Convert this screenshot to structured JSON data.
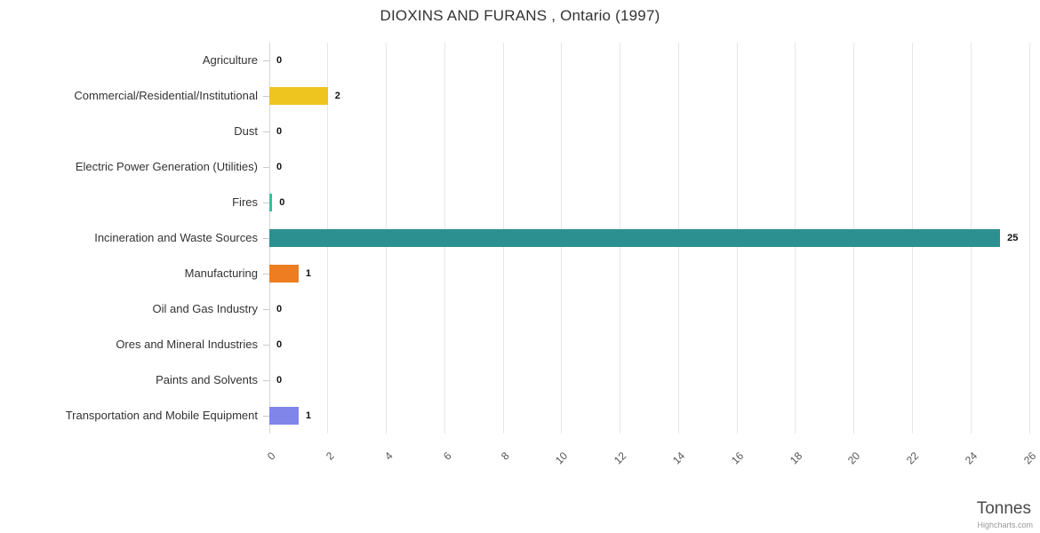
{
  "chart_data": {
    "type": "bar",
    "orientation": "horizontal",
    "title": "DIOXINS AND FURANS , Ontario (1997)",
    "categories": [
      "Agriculture",
      "Commercial/Residential/Institutional",
      "Dust",
      "Electric Power Generation (Utilities)",
      "Fires",
      "Incineration and Waste Sources",
      "Manufacturing",
      "Oil and Gas Industry",
      "Ores and Mineral Industries",
      "Paints and Solvents",
      "Transportation and Mobile Equipment"
    ],
    "values": [
      0,
      2,
      0,
      0,
      0.1,
      25,
      1,
      0,
      0,
      0,
      1
    ],
    "data_labels": [
      "0",
      "2",
      "0",
      "0",
      "0",
      "25",
      "1",
      "0",
      "0",
      "0",
      "1"
    ],
    "bar_colors": [
      null,
      "#edc51e",
      null,
      null,
      "#38bf9a",
      "#2b908f",
      "#ed7d20",
      null,
      null,
      null,
      "#8085e9"
    ],
    "xlabel": "Tonnes",
    "xlim": [
      0,
      26
    ],
    "xticks": [
      0,
      2,
      4,
      6,
      8,
      10,
      12,
      14,
      16,
      18,
      20,
      22,
      24,
      26
    ],
    "grid": "vertical",
    "legend": "none",
    "credit": "Highcharts.com",
    "gridline_color": "#e6e6e6",
    "axis_line_color": "#d6d6d6",
    "tick_color": "#c9c9c9"
  }
}
